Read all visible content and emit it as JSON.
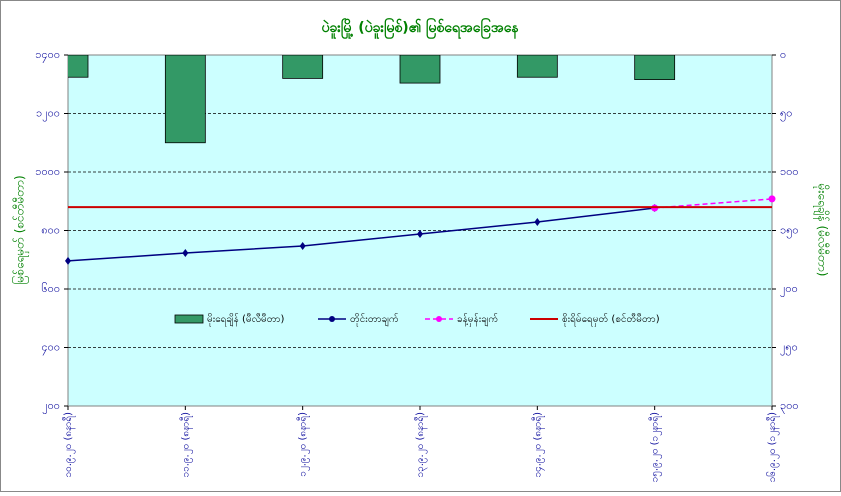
{
  "chart_data": {
    "type": "combo",
    "title": "ပဲခူးမြို့ (ပဲခူးမြစ်)၏ မြစ်ရေအခြေအနေ",
    "y_label": "မြစ်ရေမှတ် (စင်တီမီတာ)",
    "y2_label": "မိုးရေချိန် (မီလီမီတာ)",
    "categories": [
      "၁၀.၉.၂၀ (၈နာရီ)",
      "၁၁.၉.၂၀ (၈နာရီ)",
      "၁၂.၉.၂၀ (၈နာရီ)",
      "၁၃.၉.၂၀ (၈နာရီ)",
      "၁၄.၉.၂၀ (၈နာရီ)",
      "၁၅.၉.၂၀ (၁၂နာရီ)",
      "၁၆.၉.၂၀ (၁၂နာရီ)"
    ],
    "ylim": [
      200,
      1400
    ],
    "yticks": [
      {
        "value": 200,
        "label": "၂၀၀"
      },
      {
        "value": 400,
        "label": "၄၀၀"
      },
      {
        "value": 600,
        "label": "၆၀၀"
      },
      {
        "value": 800,
        "label": "၈၀၀"
      },
      {
        "value": 1000,
        "label": "၁၀၀၀"
      },
      {
        "value": 1200,
        "label": "၁၂၀၀"
      },
      {
        "value": 1400,
        "label": "၁၄၀၀"
      }
    ],
    "y2lim": [
      300,
      0
    ],
    "y2ticks": [
      {
        "value": 0,
        "label": "၀"
      },
      {
        "value": 50,
        "label": "၅၀"
      },
      {
        "value": 100,
        "label": "၁၀၀"
      },
      {
        "value": 150,
        "label": "၁၅၀"
      },
      {
        "value": 200,
        "label": "၂၀၀"
      },
      {
        "value": 250,
        "label": "၂၅၀"
      },
      {
        "value": 300,
        "label": "၃၀၀"
      }
    ],
    "grid": true,
    "series": [
      {
        "name": "မိုးရေချိန် (မီလီမီတာ)",
        "type": "bar",
        "axis": "y2",
        "color": "#339966",
        "values": [
          19,
          75,
          20,
          24,
          19,
          21,
          null
        ]
      },
      {
        "name": "တိုင်းတာချက်",
        "type": "line",
        "color": "#000080",
        "values": [
          696,
          723,
          747,
          788,
          829,
          877,
          null
        ]
      },
      {
        "name": "ခန့်မှန်းချက်",
        "type": "line",
        "dashed": true,
        "color": "#ff00ff",
        "values": [
          null,
          null,
          null,
          null,
          null,
          877,
          908
        ]
      }
    ],
    "reference_line": {
      "name": "စိုးရိမ်ရေမှတ် (စင်တီမီတာ)",
      "color": "#cc0000",
      "value": 880
    }
  }
}
